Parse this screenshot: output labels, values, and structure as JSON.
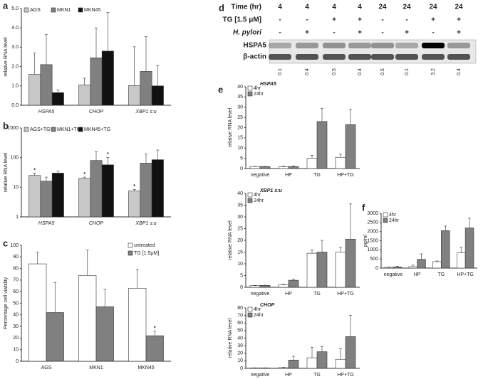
{
  "chart_data": [
    {
      "type": "bar",
      "panel": "a",
      "ylabel": "relative RNA level",
      "categories": [
        "HSPA5",
        "CHOP",
        "XBP1 s:u"
      ],
      "series": [
        {
          "name": "AGS",
          "color": "#c8c8c8",
          "values": [
            1.6,
            1.05,
            1.02
          ],
          "errors": [
            1.1,
            0.35,
            2.0
          ]
        },
        {
          "name": "MKN1",
          "color": "#808080",
          "values": [
            2.1,
            2.45,
            1.75
          ],
          "errors": [
            1.55,
            1.55,
            1.8
          ]
        },
        {
          "name": "MKN45",
          "color": "#111111",
          "values": [
            0.65,
            2.8,
            1.0
          ],
          "errors": [
            0.15,
            2.0,
            1.05
          ]
        }
      ],
      "ylim": [
        0,
        5
      ],
      "yticks": [
        {
          "value": 0,
          "label": "0.0"
        },
        {
          "value": 1,
          "label": "1.0"
        },
        {
          "value": 2,
          "label": "2.0"
        },
        {
          "value": 3,
          "label": "3.0"
        },
        {
          "value": 4,
          "label": "4.0"
        },
        {
          "value": 5,
          "label": "5.0"
        }
      ],
      "legend": "upper left"
    },
    {
      "type": "bar",
      "panel": "b",
      "ylabel": "relative RNA level",
      "categories": [
        "HSPA5",
        "CHOP",
        "XBP1 s:u"
      ],
      "log": true,
      "series": [
        {
          "name": "AGS+TG",
          "color": "#c8c8c8",
          "values": [
            25,
            20,
            7.5
          ],
          "errors": [
            5,
            2,
            1
          ],
          "annotations": [
            "*",
            "*",
            "*"
          ]
        },
        {
          "name": "MKN1+TG",
          "color": "#808080",
          "values": [
            16,
            80,
            65
          ],
          "errors": [
            6,
            80,
            70
          ],
          "annotations": [
            null,
            null,
            null
          ]
        },
        {
          "name": "MKN45+TG",
          "color": "#111111",
          "values": [
            30,
            57,
            85
          ],
          "errors": [
            5,
            45,
            95
          ],
          "annotations": [
            null,
            "*",
            null
          ]
        }
      ],
      "ylim": [
        1,
        1000
      ],
      "yticks": [
        1,
        10,
        100,
        1000
      ],
      "legend": "upper left"
    },
    {
      "type": "bar",
      "panel": "c",
      "ylabel": "Percentage cell viability",
      "categories": [
        "AGS",
        "MKN1",
        "MKN45"
      ],
      "series": [
        {
          "name": "untreated",
          "color": "#ffffff",
          "values": [
            84,
            74,
            63
          ],
          "errors": [
            10,
            22,
            16
          ],
          "annotations": [
            null,
            null,
            null
          ]
        },
        {
          "name": "TG [1.5μM]",
          "color": "#808080",
          "values": [
            42,
            47,
            22
          ],
          "errors": [
            26,
            15,
            4
          ],
          "annotations": [
            null,
            null,
            "*"
          ]
        }
      ],
      "ylim": [
        0,
        100
      ],
      "yticks": [
        0,
        10,
        20,
        30,
        40,
        50,
        60,
        70,
        80,
        90,
        100
      ],
      "legend": "upper right"
    },
    {
      "type": "blot",
      "panel": "d",
      "row_labels": [
        "Time (hr)",
        "TG [1.5 μM]",
        "H. pylori"
      ],
      "rows": [
        [
          4,
          4,
          4,
          4,
          24,
          24,
          24,
          24
        ],
        [
          "-",
          "-",
          "+",
          "+",
          "-",
          "-",
          "+",
          "+"
        ],
        [
          "-",
          "+",
          "-",
          "+",
          "-",
          "+",
          "-",
          "+"
        ]
      ],
      "bands": [
        "HSPA5",
        "β-actin"
      ],
      "values": [
        0.1,
        0.4,
        0.5,
        0.4,
        0.5,
        0.1,
        3.2,
        0.4
      ]
    },
    {
      "type": "bar",
      "panel": "e",
      "title": "HSPA5",
      "ylabel": "relative RNA level",
      "categories": [
        "negative",
        "HP",
        "TG",
        "HP+TG"
      ],
      "series": [
        {
          "name": "4hr",
          "color": "#ffffff",
          "values": [
            1,
            0.8,
            5,
            5.5
          ],
          "errors": [
            0.1,
            0.3,
            1.5,
            1.5
          ]
        },
        {
          "name": "24hr",
          "color": "#808080",
          "values": [
            1,
            1,
            23,
            21.5
          ],
          "errors": [
            0.1,
            0.3,
            6.5,
            7.5
          ]
        }
      ],
      "ylim": [
        0,
        40
      ],
      "yticks": [
        0,
        5,
        10,
        15,
        20,
        25,
        30,
        35,
        40
      ],
      "legend": "upper left"
    },
    {
      "type": "bar",
      "title": "XBP1 s:u",
      "ylabel": "relative RNA level",
      "categories": [
        "negative",
        "HP",
        "TG",
        "HP+TG"
      ],
      "series": [
        {
          "name": "4hr",
          "color": "#ffffff",
          "values": [
            0.7,
            1,
            14.5,
            15
          ],
          "errors": [
            0.1,
            0.2,
            1.5,
            2
          ]
        },
        {
          "name": "24hr",
          "color": "#808080",
          "values": [
            0.8,
            3,
            15,
            20.5
          ],
          "errors": [
            0.1,
            0.4,
            5,
            15
          ]
        }
      ],
      "ylim": [
        0,
        40
      ],
      "yticks": [
        0,
        5,
        10,
        15,
        20,
        25,
        30,
        35,
        40
      ],
      "legend": "upper left"
    },
    {
      "type": "bar",
      "title": "CHOP",
      "ylabel": "relative RNA level",
      "categories": [
        "negative",
        "HP",
        "TG",
        "HP+TG"
      ],
      "series": [
        {
          "name": "4hr",
          "color": "#ffffff",
          "values": [
            0.5,
            1,
            14,
            12
          ],
          "errors": [
            0.2,
            0.5,
            14,
            14
          ]
        },
        {
          "name": "24hr",
          "color": "#808080",
          "values": [
            0.5,
            11,
            22,
            42
          ],
          "errors": [
            0.2,
            5,
            7,
            28
          ]
        }
      ],
      "ylim": [
        0,
        80
      ],
      "yticks": [
        0,
        10,
        20,
        30,
        40,
        50,
        60,
        70,
        80
      ],
      "legend": "upper left"
    },
    {
      "type": "bar",
      "panel": "f",
      "ylabel": "pg/ml",
      "categories": [
        "negative",
        "HP",
        "TG",
        "HP+TG"
      ],
      "series": [
        {
          "name": "4hr",
          "color": "#ffffff",
          "values": [
            40,
            80,
            350,
            830
          ],
          "errors": [
            20,
            80,
            40,
            320
          ]
        },
        {
          "name": "24hr",
          "color": "#808080",
          "values": [
            60,
            480,
            2050,
            2200
          ],
          "errors": [
            40,
            300,
            250,
            530
          ]
        }
      ],
      "ylim": [
        0,
        3000
      ],
      "yticks": [
        0,
        500,
        1000,
        1500,
        2000,
        2500,
        3000
      ],
      "legend": "upper left"
    }
  ]
}
